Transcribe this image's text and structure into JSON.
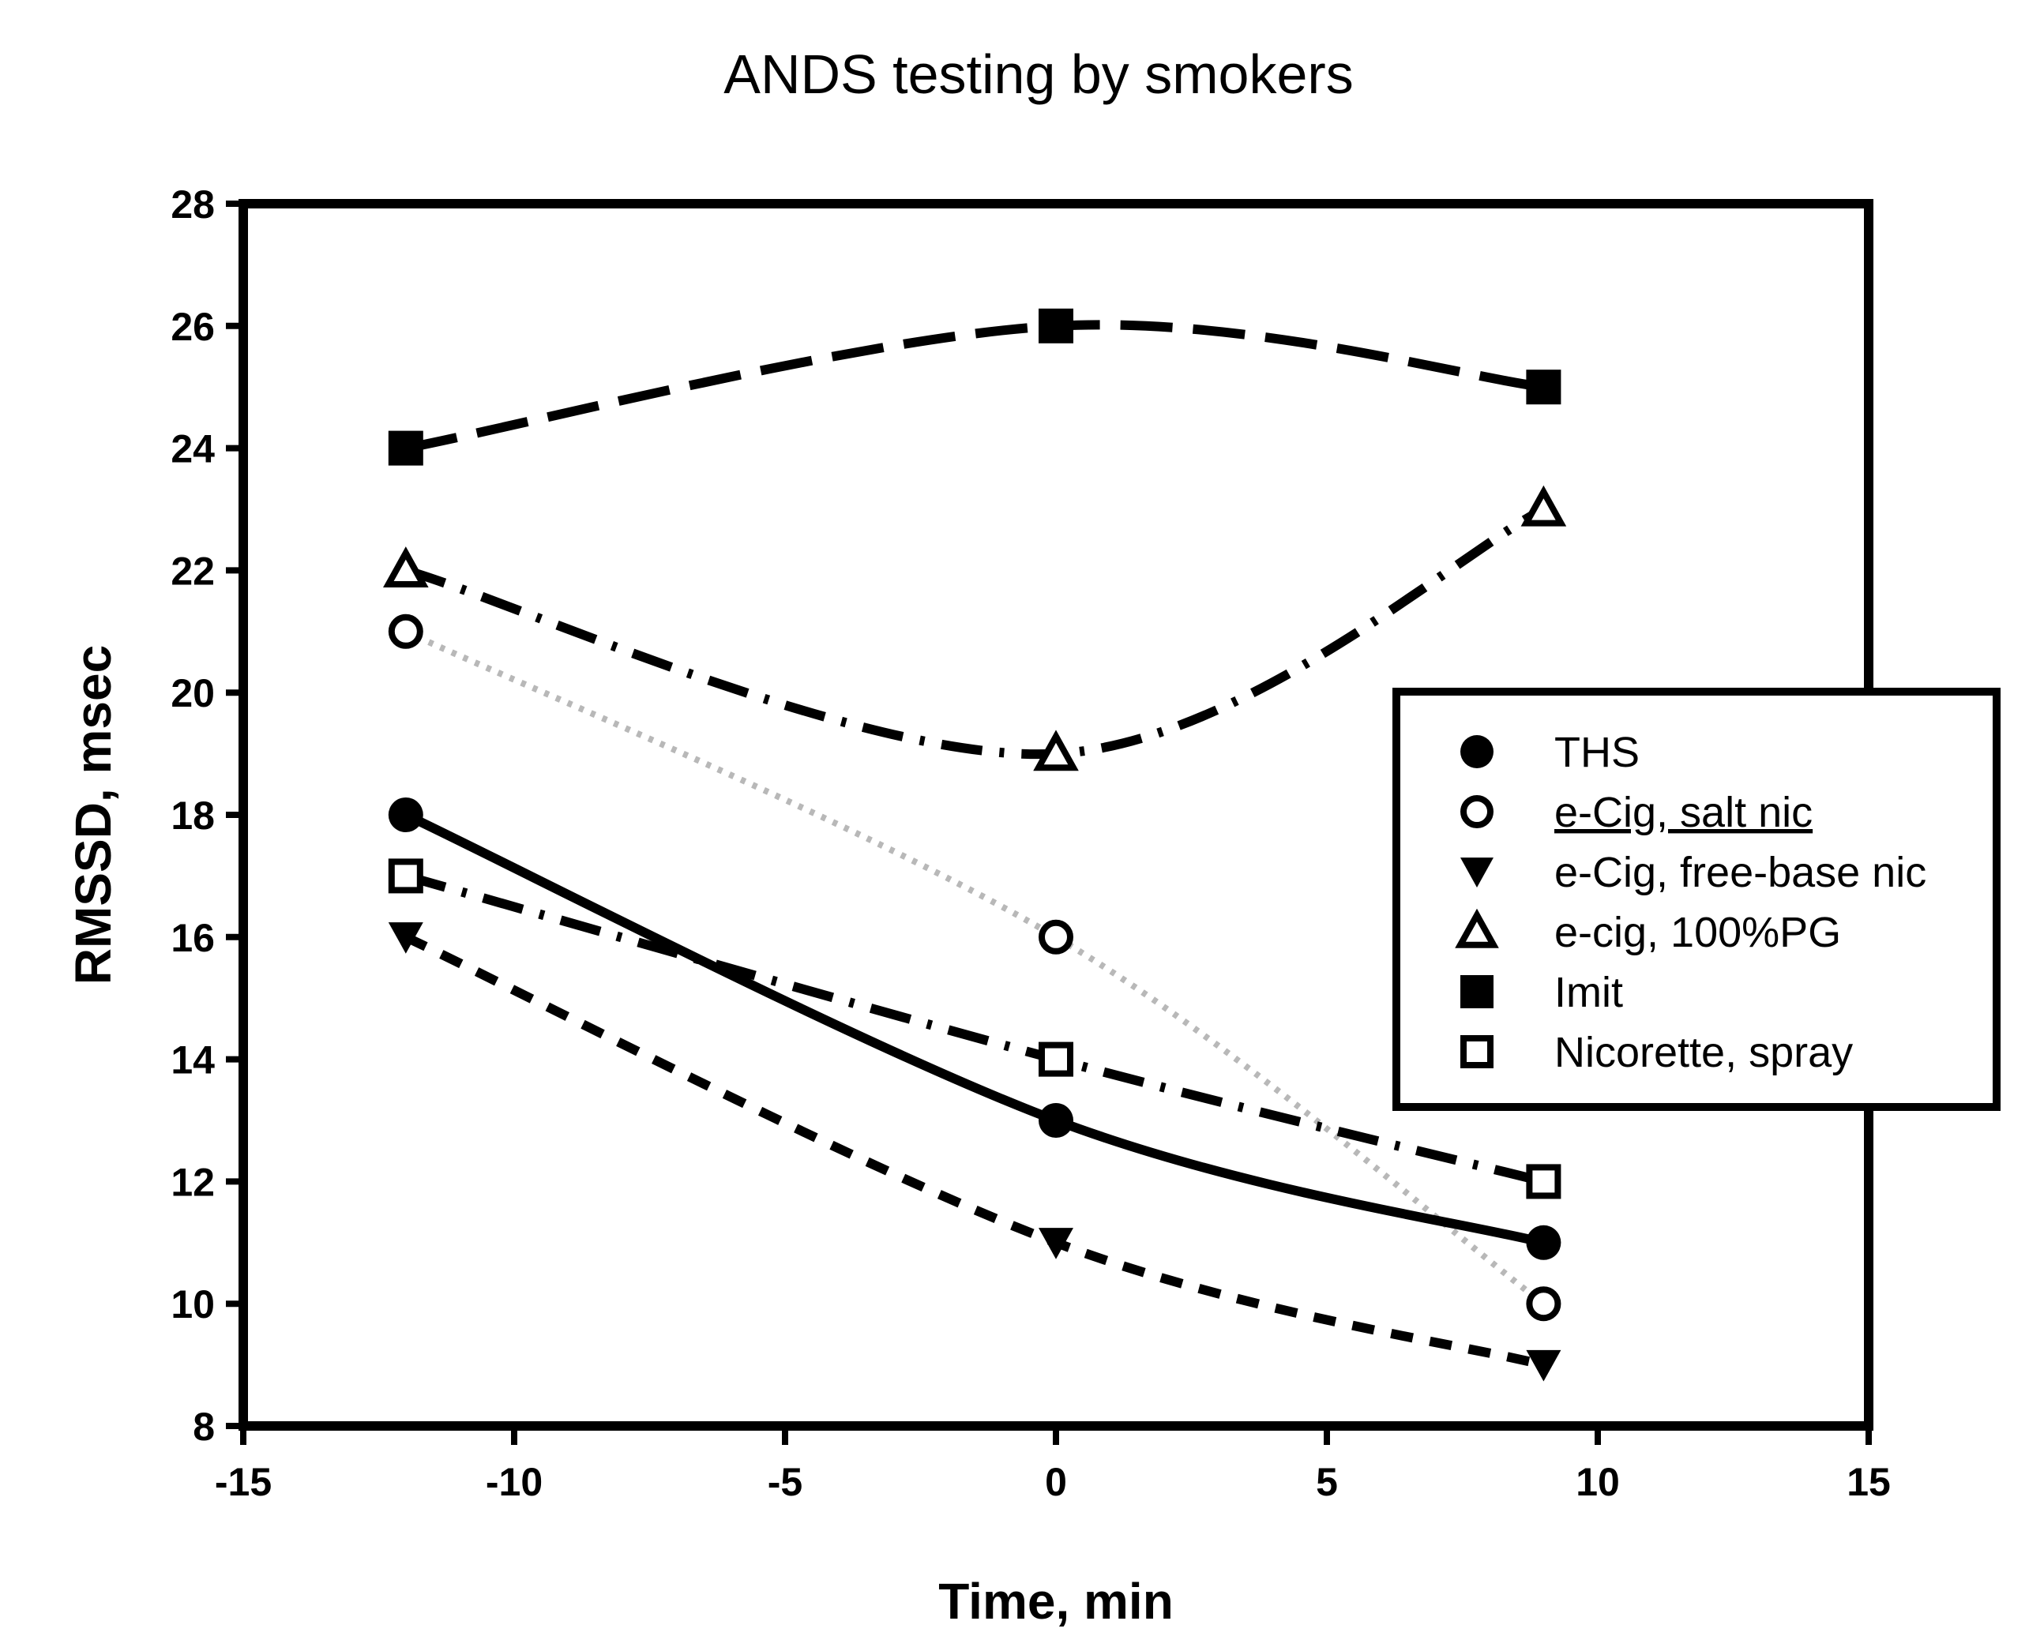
{
  "chart_data": {
    "type": "line",
    "title": "ANDS testing by smokers",
    "xlabel": "Time, min",
    "ylabel": "RMSSD, msec",
    "xlim": [
      -15,
      15
    ],
    "ylim": [
      8,
      28
    ],
    "xticks": [
      "-15",
      "-10",
      "-5",
      "0",
      "5",
      "10",
      "15"
    ],
    "yticks": [
      "8",
      "10",
      "12",
      "14",
      "16",
      "18",
      "20",
      "22",
      "24",
      "26",
      "28"
    ],
    "grid": false,
    "legend_position": "right",
    "x": [
      -12,
      0,
      9
    ],
    "series": [
      {
        "name": "THS",
        "values": [
          18,
          13,
          11
        ],
        "marker": "circle-filled",
        "line": "solid"
      },
      {
        "name": "e-Cig, salt nic",
        "values": [
          21,
          16,
          10
        ],
        "marker": "circle-open",
        "line": "dotted-gray",
        "underline": true
      },
      {
        "name": "e-Cig, free-base nic",
        "values": [
          16,
          11,
          9
        ],
        "marker": "triangle-down-filled",
        "line": "short-dash"
      },
      {
        "name": "e-cig, 100%PG",
        "values": [
          22,
          19,
          23
        ],
        "marker": "triangle-up-open",
        "line": "dash-dot"
      },
      {
        "name": "Imit",
        "values": [
          24,
          26,
          25
        ],
        "marker": "square-filled",
        "line": "long-dash"
      },
      {
        "name": "Nicorette, spray",
        "values": [
          17,
          14,
          12
        ],
        "marker": "square-open",
        "line": "dash-dot"
      }
    ]
  }
}
